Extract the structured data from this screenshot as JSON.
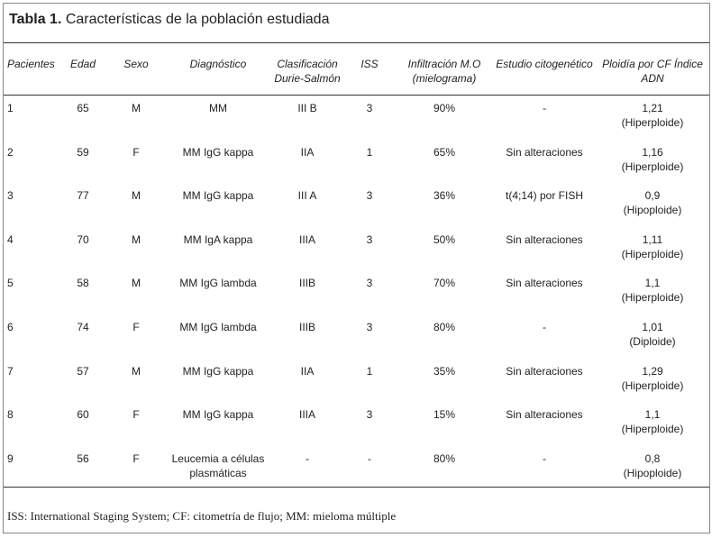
{
  "title": {
    "label": "Tabla 1.",
    "text": "Características de la población estudiada"
  },
  "table": {
    "header": [
      "Pacientes",
      "Edad",
      "Sexo",
      "Diagnóstico",
      [
        "Clasificación",
        "Durie-Salmón"
      ],
      "ISS",
      [
        "Infiltración M.O",
        "(mielograma)"
      ],
      "Estudio citogenético",
      [
        "Ploidía por CF Índice",
        "ADN"
      ]
    ],
    "rows": [
      [
        "1",
        "65",
        "M",
        "MM",
        "III B",
        "3",
        "90%",
        "-",
        [
          "1,21",
          "(Hiperploide)"
        ]
      ],
      [
        "2",
        "59",
        "F",
        "MM IgG kappa",
        "IIA",
        "1",
        "65%",
        "Sin alteraciones",
        [
          "1,16",
          "(Hiperploide)"
        ]
      ],
      [
        "3",
        "77",
        "M",
        "MM IgG kappa",
        "III A",
        "3",
        "36%",
        "t(4;14) por FISH",
        [
          "0,9",
          "(Hipoploide)"
        ]
      ],
      [
        "4",
        "70",
        "M",
        "MM IgA kappa",
        "IIIA",
        "3",
        "50%",
        "Sin alteraciones",
        [
          "1,11",
          "(Hiperploide)"
        ]
      ],
      [
        "5",
        "58",
        "M",
        "MM IgG lambda",
        "IIIB",
        "3",
        "70%",
        "Sin alteraciones",
        [
          "1,1",
          "(Hiperploide)"
        ]
      ],
      [
        "6",
        "74",
        "F",
        "MM IgG lambda",
        "IIIB",
        "3",
        "80%",
        "-",
        [
          "1,01",
          "(Diploide)"
        ]
      ],
      [
        "7",
        "57",
        "M",
        "MM IgG kappa",
        "IIA",
        "1",
        "35%",
        "Sin alteraciones",
        [
          "1,29",
          "(Hiperploide)"
        ]
      ],
      [
        "8",
        "60",
        "F",
        "MM IgG kappa",
        "IIIA",
        "3",
        "15%",
        "Sin alteraciones",
        [
          "1,1",
          "(Hiperploide)"
        ]
      ],
      [
        "9",
        "56",
        "F",
        [
          "Leucemia a células",
          "plasmáticas"
        ],
        "-",
        "-",
        "80%",
        "-",
        [
          "0,8",
          "(Hipoploide)"
        ]
      ]
    ]
  },
  "footnote": "ISS: International Staging System; CF: citometría de flujo; MM: mieloma múltiple"
}
